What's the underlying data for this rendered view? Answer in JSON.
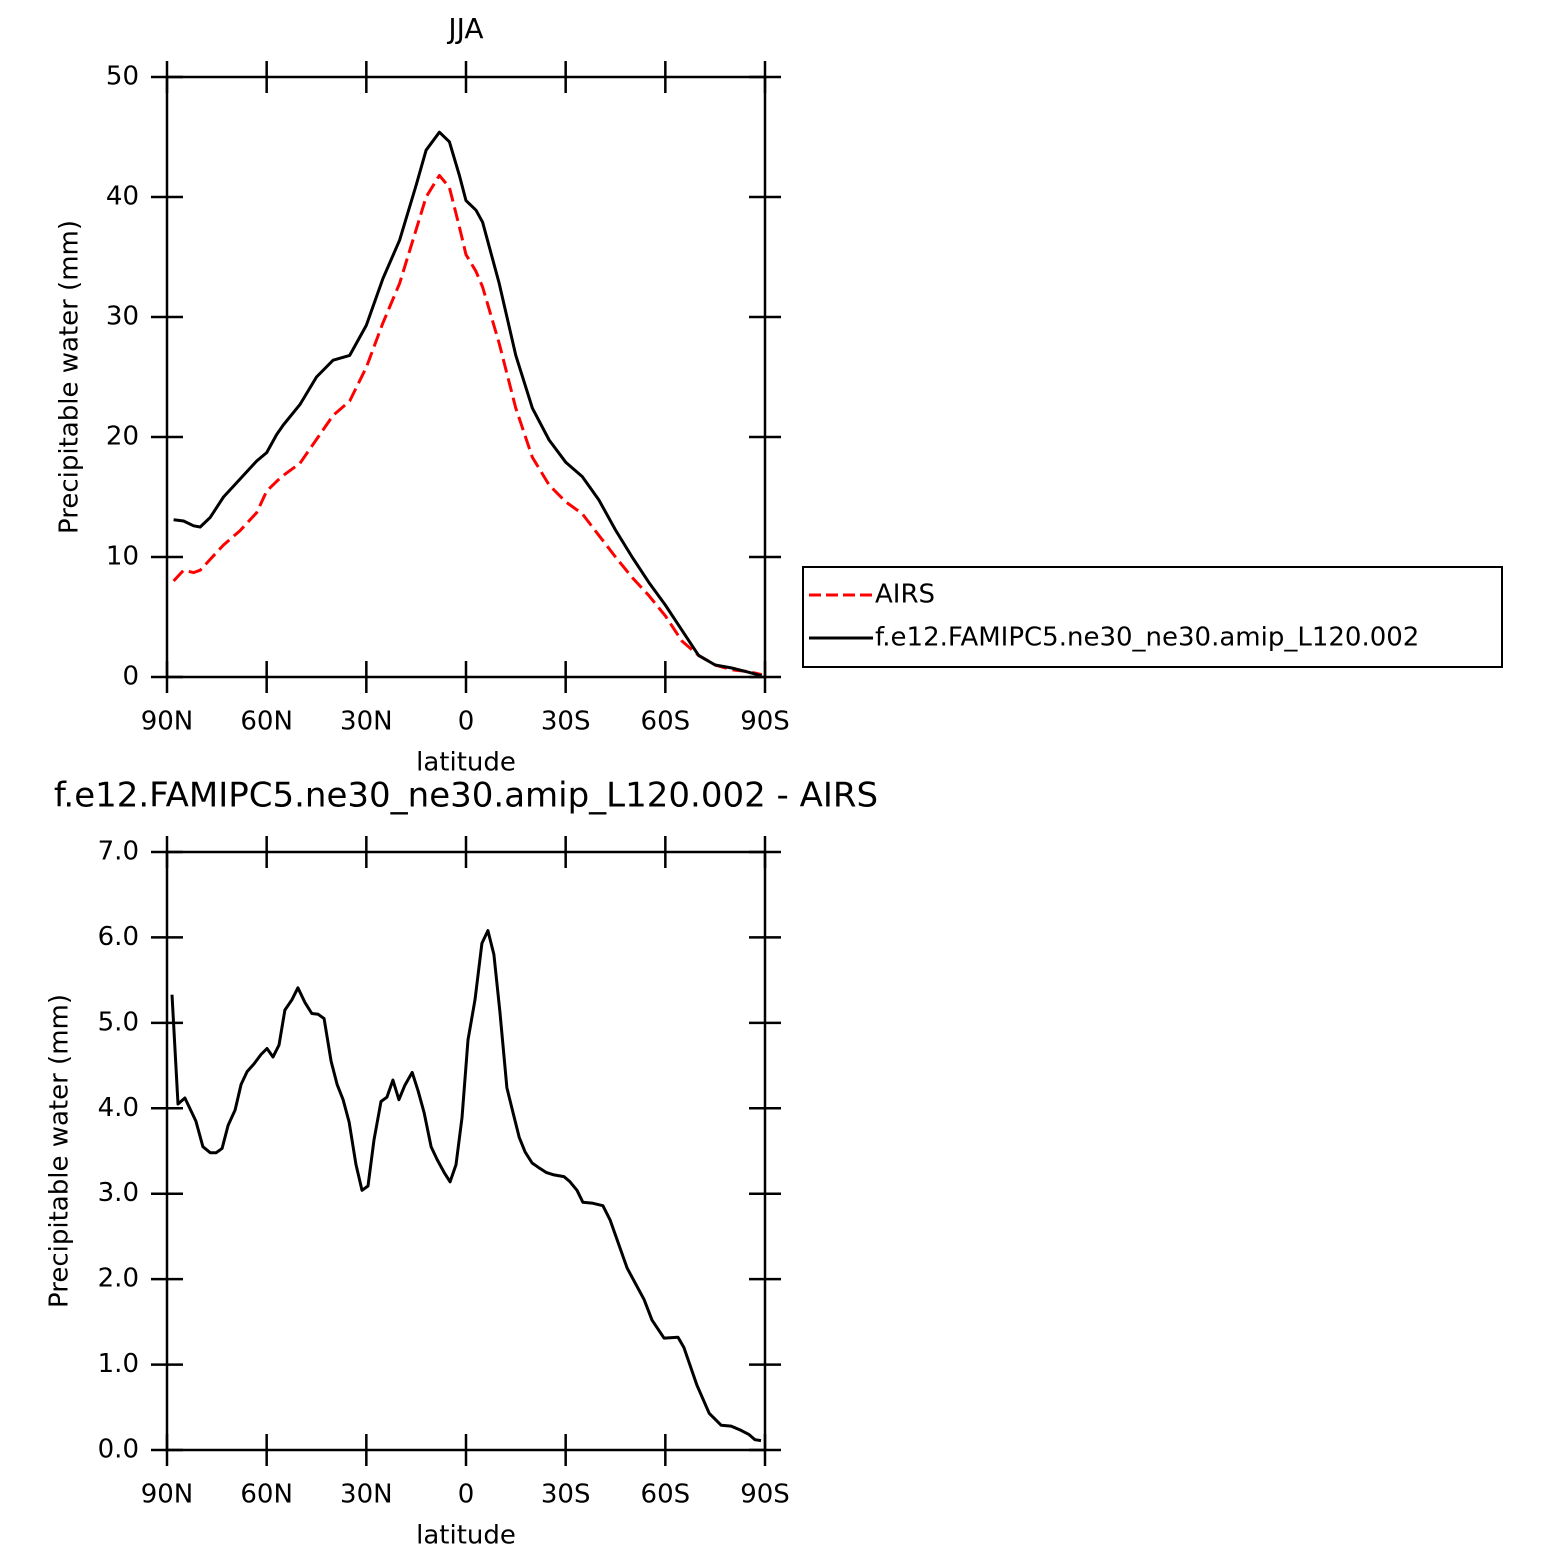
{
  "chart_data": [
    {
      "type": "line",
      "title": "JJA",
      "xlabel": "latitude",
      "ylabel": "Precipitable water (mm)",
      "xlim": [
        90,
        -90
      ],
      "xticks": [
        {
          "value": 90,
          "label": "90N"
        },
        {
          "value": 60,
          "label": "60N"
        },
        {
          "value": 30,
          "label": "30N"
        },
        0,
        {
          "value": -30,
          "label": "30S"
        },
        {
          "value": -60,
          "label": "60S"
        },
        {
          "value": -90,
          "label": "90S"
        }
      ],
      "ylim": [
        0,
        50
      ],
      "yticks": [
        0,
        10,
        20,
        30,
        40,
        50
      ],
      "legend": "right",
      "x": [
        88,
        85,
        82,
        80,
        77,
        73,
        68,
        63,
        60,
        57,
        55,
        50,
        45,
        40,
        35,
        30,
        25,
        20,
        15,
        12,
        8,
        5,
        2,
        0,
        -3,
        -5,
        -10,
        -15,
        -20,
        -25,
        -30,
        -35,
        -40,
        -45,
        -50,
        -55,
        -60,
        -65,
        -70,
        -75,
        -80,
        -85,
        -89
      ],
      "series": [
        {
          "name": "AIRS",
          "color": "#ff0000",
          "dashed": true,
          "values": [
            8.0,
            8.9,
            8.7,
            8.9,
            9.8,
            11.0,
            12.2,
            13.7,
            15.5,
            16.3,
            16.8,
            17.8,
            19.8,
            21.8,
            23.0,
            25.8,
            29.5,
            32.8,
            37.3,
            40.0,
            41.8,
            40.8,
            37.5,
            35.2,
            33.8,
            32.5,
            27.8,
            22.4,
            18.3,
            16.0,
            14.6,
            13.6,
            11.8,
            10.0,
            8.3,
            6.8,
            5.1,
            3.0,
            1.8,
            1.0,
            0.6,
            0.45,
            0.2
          ]
        },
        {
          "name": "f.e12.FAMIPC5.ne30_ne30.amip_L120.002",
          "color": "#000000",
          "dashed": false,
          "values": [
            13.1,
            13.0,
            12.6,
            12.5,
            13.3,
            15.0,
            16.5,
            18.0,
            18.7,
            20.2,
            21,
            22.7,
            25,
            26.4,
            26.8,
            29.3,
            33.2,
            36.4,
            41,
            43.9,
            45.4,
            44.6,
            41.8,
            39.7,
            38.9,
            37.9,
            32.8,
            26.8,
            22.4,
            19.75,
            17.9,
            16.7,
            14.75,
            12.25,
            10,
            7.9,
            6,
            3.9,
            1.8,
            1.0,
            0.75,
            0.4,
            0.1
          ]
        }
      ]
    },
    {
      "type": "line",
      "title": "f.e12.FAMIPC5.ne30_ne30.amip_L120.002 - AIRS",
      "xlabel": "latitude",
      "ylabel": "Precipitable water (mm)",
      "xlim": [
        90,
        -90
      ],
      "xticks": [
        {
          "value": 90,
          "label": "90N"
        },
        {
          "value": 60,
          "label": "60N"
        },
        {
          "value": 30,
          "label": "30N"
        },
        0,
        {
          "value": -30,
          "label": "30S"
        },
        {
          "value": -60,
          "label": "60S"
        },
        {
          "value": -90,
          "label": "90S"
        }
      ],
      "ylim": [
        0,
        7
      ],
      "yticks": [
        {
          "value": 0,
          "label": "0.0"
        },
        {
          "value": 1,
          "label": "1.0"
        },
        {
          "value": 2,
          "label": "2.0"
        },
        {
          "value": 3,
          "label": "3.0"
        },
        {
          "value": 4,
          "label": "4.0"
        },
        {
          "value": 5,
          "label": "5.0"
        },
        {
          "value": 6,
          "label": "6.0"
        },
        {
          "value": 7,
          "label": "7.0"
        }
      ],
      "color": "#000000",
      "x": [
        88.5,
        86.7,
        84.6,
        81.3,
        79.2,
        77,
        75.2,
        73.4,
        71.6,
        69.5,
        67.7,
        65.9,
        63.8,
        61.7,
        59.9,
        58.1,
        56.3,
        54.5,
        52.4,
        50.6,
        48.5,
        46.4,
        44.5,
        42.7,
        40.6,
        38.8,
        37,
        35.2,
        33.1,
        31.3,
        29.5,
        27.7,
        25.6,
        23.8,
        22,
        20.2,
        18.4,
        16.2,
        14.4,
        12.6,
        10.5,
        8.7,
        6.6,
        4.8,
        3,
        1.2,
        -0.6,
        -2.7,
        -4.8,
        -6.6,
        -8.4,
        -10.2,
        -12.3,
        -14.2,
        -16,
        -17.8,
        -19.9,
        -21.7,
        -24.1,
        -26.5,
        -29.5,
        -31.3,
        -33.4,
        -35.2,
        -37.9,
        -41.2,
        -43.4,
        -48.5,
        -53.6,
        -56,
        -59.6,
        -63.8,
        -65.6,
        -69.5,
        -73.2,
        -76.8,
        -79.8,
        -82.8,
        -85.2,
        -87,
        -88.8
      ],
      "values": [
        5.33,
        4.05,
        4.12,
        3.85,
        3.55,
        3.48,
        3.48,
        3.53,
        3.8,
        3.98,
        4.28,
        4.43,
        4.52,
        4.63,
        4.7,
        4.6,
        4.74,
        5.15,
        5.27,
        5.41,
        5.24,
        5.11,
        5.1,
        5.05,
        4.55,
        4.28,
        4.1,
        3.84,
        3.34,
        3.04,
        3.09,
        3.63,
        4.08,
        4.13,
        4.33,
        4.1,
        4.27,
        4.42,
        4.2,
        3.95,
        3.55,
        3.4,
        3.25,
        3.14,
        3.34,
        3.89,
        4.8,
        5.27,
        5.93,
        6.08,
        5.8,
        5.13,
        4.24,
        3.94,
        3.66,
        3.49,
        3.36,
        3.31,
        3.25,
        3.22,
        3.2,
        3.14,
        3.04,
        2.9,
        2.89,
        2.86,
        2.69,
        2.13,
        1.76,
        1.52,
        1.31,
        1.32,
        1.2,
        0.76,
        0.43,
        0.29,
        0.28,
        0.23,
        0.18,
        0.12,
        0.11
      ]
    }
  ]
}
